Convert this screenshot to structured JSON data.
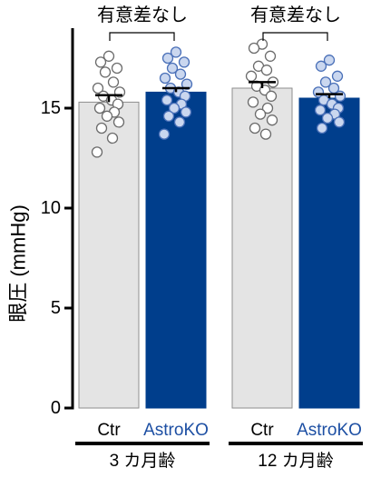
{
  "colors": {
    "series": [
      {
        "bar_fill": "#e4e4e4",
        "bar_stroke": "#8e8e8e",
        "point_fill": "#ffffff",
        "point_stroke": "#6b6b6b",
        "label": "#000000"
      },
      {
        "bar_fill": "#003e8c",
        "bar_stroke": "#003e8c",
        "point_fill": "#cad7ef",
        "point_stroke": "#4a70b8",
        "label": "#1d4fa3"
      }
    ]
  },
  "chart_data": {
    "type": "bar",
    "ylabel": "眼圧 (mmHg)",
    "ylim": [
      0,
      19
    ],
    "yticks": [
      0,
      5,
      10,
      15
    ],
    "grid": false,
    "categories": [
      "3 カ月齢",
      "12 カ月齢"
    ],
    "series": [
      {
        "name": "Ctr",
        "values": [
          15.3,
          16.0
        ],
        "error": [
          0.35,
          0.3
        ],
        "points": [
          [
            17.6,
            17.3,
            17.0,
            16.8,
            16.3,
            16.0,
            15.8,
            15.6,
            15.4,
            15.2,
            15.0,
            14.8,
            14.6,
            14.3,
            14.0,
            13.5,
            12.8
          ],
          [
            18.2,
            18.0,
            17.6,
            17.1,
            16.9,
            16.6,
            16.3,
            16.1,
            15.9,
            15.6,
            15.3,
            15.0,
            14.7,
            14.4,
            14.0,
            13.7
          ]
        ]
      },
      {
        "name": "AstroKO",
        "values": [
          15.8,
          15.5
        ],
        "error": [
          0.2,
          0.2
        ],
        "points": [
          [
            17.8,
            17.5,
            17.3,
            17.0,
            16.7,
            16.5,
            16.2,
            16.0,
            15.8,
            15.6,
            15.4,
            15.2,
            15.0,
            14.8,
            14.6,
            14.3,
            13.7
          ],
          [
            17.4,
            17.1,
            16.6,
            16.3,
            16.0,
            15.8,
            15.6,
            15.4,
            15.2,
            15.0,
            14.9,
            14.7,
            14.5,
            14.3,
            14.0
          ]
        ]
      }
    ],
    "comparisons": [
      "有意差なし",
      "有意差なし"
    ]
  }
}
